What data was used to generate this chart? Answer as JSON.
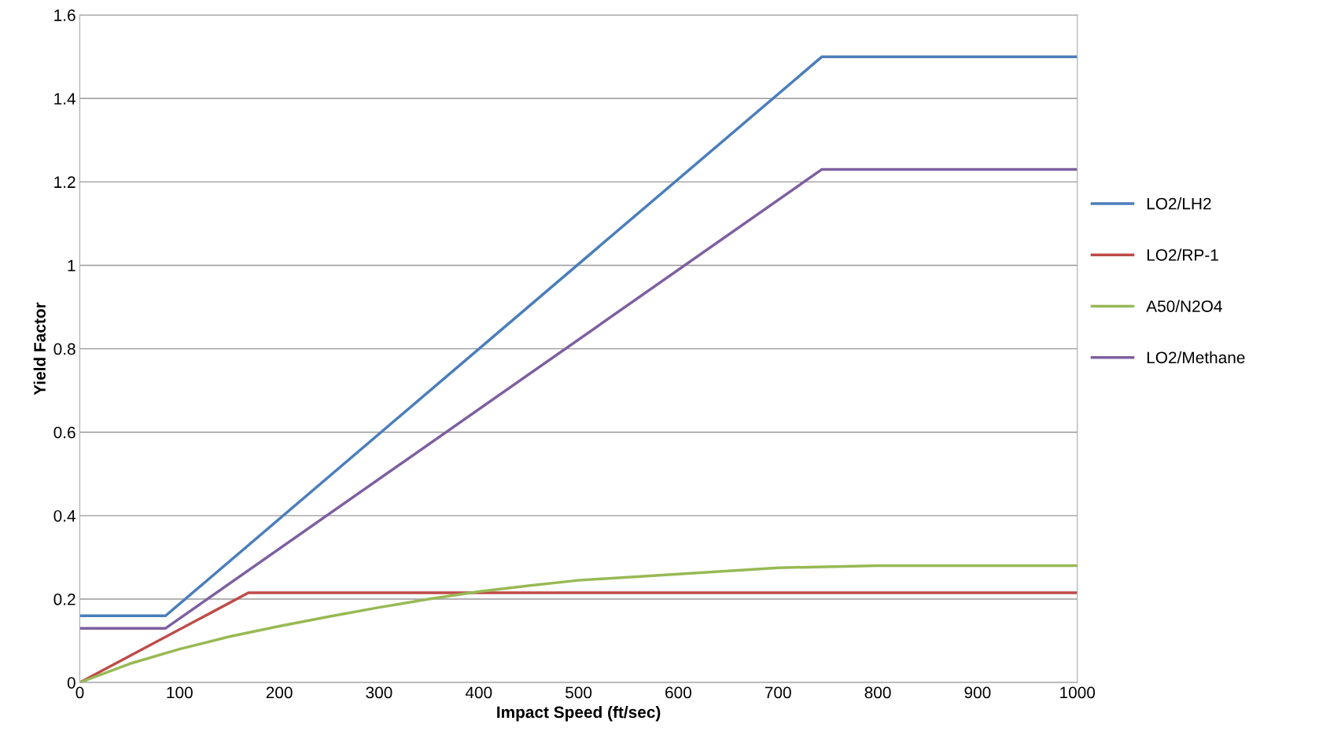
{
  "chart_data": {
    "type": "line",
    "xlabel": "Impact Speed (ft/sec)",
    "ylabel": "Yield Factor",
    "xlim": [
      0,
      1000
    ],
    "xticks": [
      0,
      100,
      200,
      300,
      400,
      500,
      600,
      700,
      800,
      900,
      1000
    ],
    "ylim": [
      0,
      1.6
    ],
    "yticks": [
      0,
      0.2,
      0.4,
      0.6,
      0.8,
      1,
      1.2,
      1.4,
      1.6
    ],
    "grid": "y",
    "legend": "right",
    "marker": "none",
    "line_style": "solid",
    "series": [
      {
        "name": "LO2/LH2",
        "color": "#4a7ebb",
        "x": [
          0,
          86,
          744,
          1000
        ],
        "values": [
          0.16,
          0.16,
          1.5,
          1.5
        ]
      },
      {
        "name": "LO2/RP-1",
        "color": "#be4b48",
        "x": [
          0,
          169,
          1000
        ],
        "values": [
          0,
          0.215,
          0.215
        ]
      },
      {
        "name": "A50/N2O4",
        "color": "#98b954",
        "x": [
          0,
          50,
          100,
          150,
          200,
          250,
          300,
          350,
          400,
          450,
          500,
          600,
          700,
          800,
          900,
          1000
        ],
        "values": [
          0,
          0.045,
          0.08,
          0.11,
          0.135,
          0.158,
          0.18,
          0.2,
          0.218,
          0.232,
          0.245,
          0.26,
          0.275,
          0.28,
          0.28,
          0.28
        ]
      },
      {
        "name": "LO2/Methane",
        "color": "#7d60a0",
        "x": [
          0,
          86,
          744,
          1000
        ],
        "values": [
          0.13,
          0.13,
          1.23,
          1.23
        ]
      }
    ]
  }
}
